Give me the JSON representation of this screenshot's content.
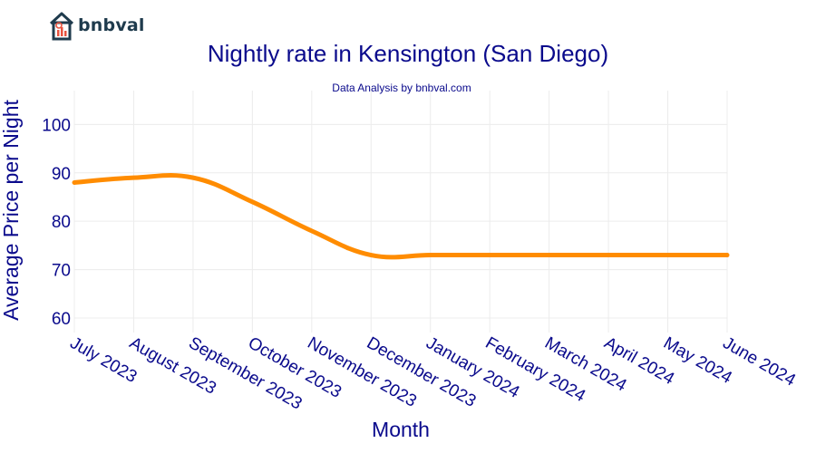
{
  "brand": {
    "name": "bnbval",
    "logo_icon": "house-chart-icon",
    "accent": "#1f3b4d",
    "logo_red": "#e8533f"
  },
  "chart_data": {
    "type": "line",
    "title": "Nightly rate in Kensington (San Diego)",
    "subtitle": "Data Analysis by bnbval.com",
    "xlabel": "Month",
    "ylabel": "Average Price per Night",
    "categories": [
      "July 2023",
      "August 2023",
      "September 2023",
      "October 2023",
      "November 2023",
      "December 2023",
      "January 2024",
      "February 2024",
      "March 2024",
      "April 2024",
      "May 2024",
      "June 2024"
    ],
    "series": [
      {
        "values": [
          88,
          89,
          89,
          84,
          78,
          73,
          73,
          73,
          73,
          73,
          73,
          73
        ],
        "color": "#ff8c00"
      }
    ],
    "ylim": [
      57,
      107
    ],
    "yticks": [
      60,
      70,
      80,
      90,
      100
    ],
    "grid": true,
    "text_color": "#0a0a8c"
  }
}
